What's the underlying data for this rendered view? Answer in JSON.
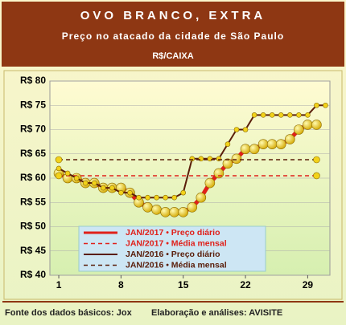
{
  "header": {
    "title": "OVO BRANCO, EXTRA",
    "subtitle": "Preço no atacado da cidade de São Paulo",
    "unit": "R$/CAIXA"
  },
  "chart_data": {
    "type": "line",
    "xlim": [
      0,
      31.5
    ],
    "xticks": [
      1,
      8,
      15,
      22,
      29
    ],
    "ylim": [
      40,
      80
    ],
    "yticks": [
      {
        "value": 40,
        "label": "R$ 40"
      },
      {
        "value": 45,
        "label": "R$ 45"
      },
      {
        "value": 50,
        "label": "R$ 50"
      },
      {
        "value": 55,
        "label": "R$ 55"
      },
      {
        "value": 60,
        "label": "R$ 60"
      },
      {
        "value": 65,
        "label": "R$ 65"
      },
      {
        "value": 70,
        "label": "R$ 70"
      },
      {
        "value": 75,
        "label": "R$ 75"
      },
      {
        "value": 80,
        "label": "R$ 80"
      }
    ],
    "grid": true,
    "series": [
      {
        "name": "JAN/2017 • Preço diário",
        "color": "#e0201a",
        "width": 5,
        "marker_color": "#f2d21a",
        "marker_size": 6,
        "x": [
          1,
          2,
          3,
          4,
          5,
          6,
          7,
          8,
          9,
          10,
          11,
          12,
          13,
          14,
          15,
          16,
          17,
          18,
          19,
          20,
          21,
          22,
          23,
          24,
          25,
          26,
          27,
          28,
          29,
          30
        ],
        "values": [
          61,
          60,
          60,
          59,
          59,
          58,
          58,
          58,
          57,
          55,
          54,
          53.5,
          53,
          53,
          53,
          54,
          56,
          59,
          61,
          63,
          64,
          66,
          66,
          67,
          67,
          67,
          68,
          70,
          71,
          71
        ]
      },
      {
        "name": "JAN/2017 • Média mensal",
        "color": "#e0201a",
        "width": 1.5,
        "dash": true,
        "marker_color": "#f2d21a",
        "marker_size": 4,
        "x": [
          1,
          30
        ],
        "values": [
          60.5,
          60.5
        ]
      },
      {
        "name": "JAN/2016 • Preço diário",
        "color": "#5a1e0a",
        "width": 2,
        "marker_color": "#f2d21a",
        "marker_size": 3,
        "x": [
          1,
          2,
          3,
          4,
          5,
          6,
          7,
          8,
          9,
          10,
          11,
          12,
          13,
          14,
          15,
          16,
          17,
          18,
          19,
          20,
          21,
          22,
          23,
          24,
          25,
          26,
          27,
          28,
          29,
          30,
          31
        ],
        "values": [
          62,
          61,
          60,
          59,
          59,
          58,
          58,
          57,
          57,
          56,
          56,
          56,
          56,
          56,
          57,
          64,
          64,
          64,
          64,
          67,
          70,
          70,
          73,
          73,
          73,
          73,
          73,
          73,
          73,
          75,
          75
        ]
      },
      {
        "name": "JAN/2016 • Média mensal",
        "color": "#5a1e0a",
        "width": 1.5,
        "dash": true,
        "marker_color": "#f2d21a",
        "marker_size": 4,
        "x": [
          1,
          30
        ],
        "values": [
          63.8,
          63.8
        ]
      }
    ]
  },
  "footer": {
    "source": "Fonte dos dados básicos: Jox",
    "credit": "Elaboração e análises: AVISITE"
  }
}
